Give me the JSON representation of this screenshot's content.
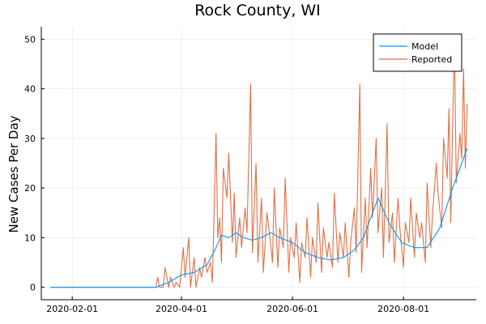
{
  "chart_data": {
    "type": "line",
    "title": "Rock County, WI",
    "xlabel": "",
    "ylabel": "New Cases Per Day",
    "x_range": [
      "2020-01-15",
      "2020-09-10"
    ],
    "ylim": [
      -2.5,
      52.5
    ],
    "x_ticks": [
      {
        "date": "2020-02-01",
        "label": "2020-02-01"
      },
      {
        "date": "2020-04-01",
        "label": "2020-04-01"
      },
      {
        "date": "2020-06-01",
        "label": "2020-06-01"
      },
      {
        "date": "2020-08-01",
        "label": "2020-08-01"
      }
    ],
    "y_ticks": [
      0,
      10,
      20,
      30,
      40,
      50
    ],
    "grid": true,
    "legend": "top-right",
    "colors": {
      "model": "#009af9",
      "reported": "#e26f46",
      "grid": "#e8e8e8",
      "axis": "#000000"
    },
    "series": [
      {
        "name": "Model",
        "color": "#009af9",
        "x": [
          "2020-01-20",
          "2020-03-18",
          "2020-03-25",
          "2020-04-01",
          "2020-04-08",
          "2020-04-15",
          "2020-04-20",
          "2020-04-23",
          "2020-04-27",
          "2020-05-01",
          "2020-05-05",
          "2020-05-10",
          "2020-05-15",
          "2020-05-20",
          "2020-05-25",
          "2020-06-01",
          "2020-06-08",
          "2020-06-15",
          "2020-06-22",
          "2020-06-29",
          "2020-07-05",
          "2020-07-10",
          "2020-07-14",
          "2020-07-18",
          "2020-07-24",
          "2020-07-31",
          "2020-08-07",
          "2020-08-14",
          "2020-08-21",
          "2020-08-28",
          "2020-09-02",
          "2020-09-05"
        ],
        "values": [
          0,
          0,
          1,
          2.5,
          3,
          4.5,
          8,
          10.5,
          10,
          11,
          10,
          9.5,
          10,
          11,
          10,
          9,
          7,
          6,
          5.5,
          6,
          7.5,
          10,
          14,
          18,
          13,
          9,
          8,
          8,
          12,
          20,
          25,
          28
        ]
      },
      {
        "name": "Reported",
        "color": "#e26f46",
        "x": [
          "2020-01-20",
          "2020-03-18",
          "2020-03-19",
          "2020-03-20",
          "2020-03-22",
          "2020-03-23",
          "2020-03-25",
          "2020-03-26",
          "2020-03-28",
          "2020-03-29",
          "2020-03-31",
          "2020-04-02",
          "2020-04-03",
          "2020-04-05",
          "2020-04-06",
          "2020-04-08",
          "2020-04-09",
          "2020-04-11",
          "2020-04-12",
          "2020-04-14",
          "2020-04-15",
          "2020-04-17",
          "2020-04-18",
          "2020-04-20",
          "2020-04-21",
          "2020-04-22",
          "2020-04-23",
          "2020-04-24",
          "2020-04-26",
          "2020-04-27",
          "2020-04-29",
          "2020-04-30",
          "2020-05-01",
          "2020-05-03",
          "2020-05-04",
          "2020-05-06",
          "2020-05-07",
          "2020-05-09",
          "2020-05-10",
          "2020-05-12",
          "2020-05-13",
          "2020-05-15",
          "2020-05-16",
          "2020-05-18",
          "2020-05-19",
          "2020-05-21",
          "2020-05-22",
          "2020-05-24",
          "2020-05-25",
          "2020-05-27",
          "2020-05-28",
          "2020-05-30",
          "2020-05-31",
          "2020-06-02",
          "2020-06-03",
          "2020-06-05",
          "2020-06-06",
          "2020-06-08",
          "2020-06-09",
          "2020-06-11",
          "2020-06-12",
          "2020-06-14",
          "2020-06-15",
          "2020-06-17",
          "2020-06-18",
          "2020-06-20",
          "2020-06-21",
          "2020-06-23",
          "2020-06-24",
          "2020-06-26",
          "2020-06-27",
          "2020-06-29",
          "2020-06-30",
          "2020-07-02",
          "2020-07-03",
          "2020-07-05",
          "2020-07-06",
          "2020-07-08",
          "2020-07-09",
          "2020-07-11",
          "2020-07-12",
          "2020-07-14",
          "2020-07-15",
          "2020-07-17",
          "2020-07-18",
          "2020-07-20",
          "2020-07-21",
          "2020-07-23",
          "2020-07-24",
          "2020-07-26",
          "2020-07-27",
          "2020-07-29",
          "2020-07-30",
          "2020-08-01",
          "2020-08-02",
          "2020-08-04",
          "2020-08-05",
          "2020-08-07",
          "2020-08-08",
          "2020-08-10",
          "2020-08-11",
          "2020-08-13",
          "2020-08-14",
          "2020-08-16",
          "2020-08-17",
          "2020-08-19",
          "2020-08-20",
          "2020-08-22",
          "2020-08-23",
          "2020-08-25",
          "2020-08-26",
          "2020-08-27",
          "2020-08-29",
          "2020-08-30",
          "2020-09-01",
          "2020-09-02",
          "2020-09-03",
          "2020-09-04",
          "2020-09-05"
        ],
        "values": [
          0,
          0,
          2,
          0,
          0,
          4,
          0,
          2,
          0,
          1,
          0,
          8,
          2,
          10,
          0,
          6,
          0,
          4,
          2,
          6,
          3,
          5,
          1,
          31,
          10,
          14,
          5,
          24,
          18,
          27,
          9,
          19,
          6,
          14,
          8,
          16,
          11,
          41,
          7,
          25,
          5,
          18,
          3,
          15,
          12,
          5,
          20,
          4,
          12,
          8,
          22,
          3,
          10,
          6,
          13,
          1,
          9,
          6,
          14,
          2,
          10,
          5,
          17,
          3,
          12,
          6,
          9,
          4,
          19,
          5,
          11,
          6,
          13,
          2,
          9,
          16,
          7,
          41,
          3,
          18,
          8,
          24,
          14,
          30,
          11,
          20,
          6,
          33,
          9,
          15,
          5,
          18,
          12,
          4,
          13,
          9,
          18,
          6,
          15,
          10,
          13,
          5,
          21,
          8,
          15,
          25,
          19,
          12,
          30,
          22,
          36,
          13,
          50,
          21,
          31,
          26,
          44,
          24,
          37
        ]
      }
    ]
  }
}
